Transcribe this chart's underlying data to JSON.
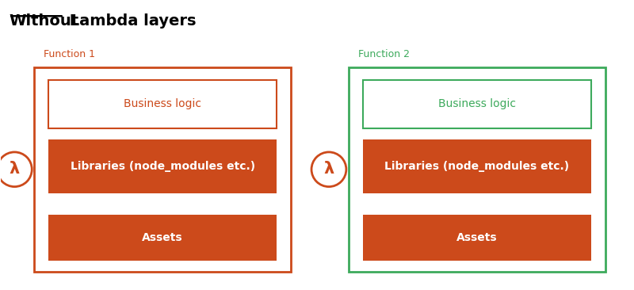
{
  "title_without": "Without",
  "title_rest": " Lambda layers",
  "bg_color": "#ffffff",
  "orange": "#CC4A1B",
  "green": "#3DAA5C",
  "white": "#ffffff",
  "func1_label": "Function 1",
  "func2_label": "Function 2",
  "box1_business": "Business logic",
  "box1_libraries": "Libraries (node_modules etc.)",
  "box1_assets": "Assets",
  "box2_business": "Business logic",
  "box2_libraries": "Libraries (node_modules etc.)",
  "box2_assets": "Assets",
  "lambda_symbol": "λ"
}
